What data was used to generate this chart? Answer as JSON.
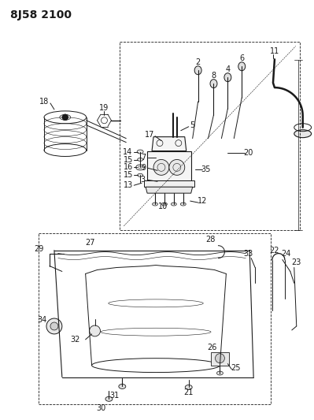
{
  "title": "8J58 2100",
  "bg_color": "#ffffff",
  "line_color": "#1a1a1a",
  "title_fontsize": 10,
  "label_fontsize": 7,
  "fig_width": 3.99,
  "fig_height": 5.33,
  "dpi": 100
}
